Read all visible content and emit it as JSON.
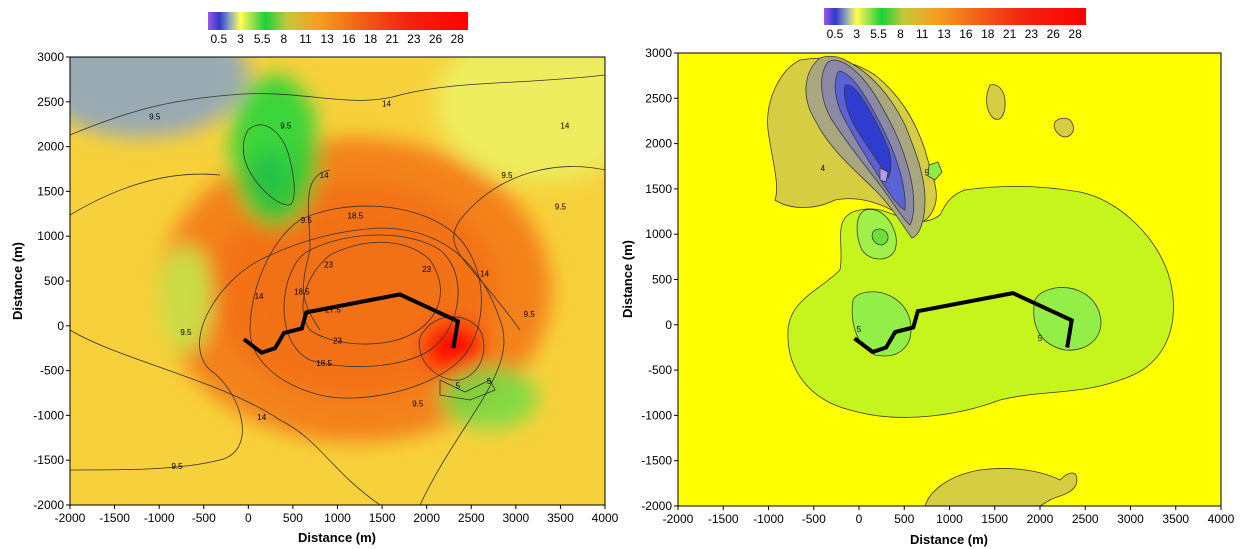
{
  "colors": {
    "stops": [
      {
        "v": 0.5,
        "c": "#9b57e8"
      },
      {
        "v": 1.8,
        "c": "#3038c8"
      },
      {
        "v": 3.0,
        "c": "#8fa6c0"
      },
      {
        "v": 4.2,
        "c": "#ffff50"
      },
      {
        "v": 5.5,
        "c": "#9de04e"
      },
      {
        "v": 7.0,
        "c": "#1ad336"
      },
      {
        "v": 9.5,
        "c": "#c5c73a"
      },
      {
        "v": 13.0,
        "c": "#f5a020"
      },
      {
        "v": 18.0,
        "c": "#f25f17"
      },
      {
        "v": 23.0,
        "c": "#f22410"
      },
      {
        "v": 30.0,
        "c": "#ff0000"
      }
    ],
    "right_background": "#ffff00",
    "path": "#000000"
  },
  "chart_data": [
    {
      "type": "heatmap",
      "title": "",
      "xlabel": "Distance (m)",
      "ylabel": "Distance (m)",
      "xlim": [
        -2000,
        4000
      ],
      "ylim": [
        -2000,
        3000
      ],
      "xticks": [
        -2000,
        -1500,
        -1000,
        -500,
        0,
        500,
        1000,
        1500,
        2000,
        2500,
        3000,
        3500,
        4000
      ],
      "yticks": [
        -2000,
        -1500,
        -1000,
        -500,
        0,
        500,
        1000,
        1500,
        2000,
        2500,
        3000
      ],
      "colorbar_labels": [
        "0.5",
        "3",
        "5.5",
        "8",
        "11",
        "13",
        "16",
        "18",
        "21",
        "23",
        "26",
        "28"
      ],
      "contour_labels": [
        {
          "text": "14",
          "x": 1550,
          "y": 2450
        },
        {
          "text": "14",
          "x": 3550,
          "y": 2200
        },
        {
          "text": "9.5",
          "x": -1050,
          "y": 2300
        },
        {
          "text": "9.5",
          "x": 420,
          "y": 2200
        },
        {
          "text": "9.5",
          "x": 2900,
          "y": 1650
        },
        {
          "text": "9.5",
          "x": 3500,
          "y": 1300
        },
        {
          "text": "9.5",
          "x": 650,
          "y": 1150
        },
        {
          "text": "14",
          "x": 850,
          "y": 1650
        },
        {
          "text": "18.5",
          "x": 1200,
          "y": 1200
        },
        {
          "text": "23",
          "x": 2000,
          "y": 600
        },
        {
          "text": "23",
          "x": 900,
          "y": 650
        },
        {
          "text": "14",
          "x": 2650,
          "y": 550
        },
        {
          "text": "18.5",
          "x": 600,
          "y": 350
        },
        {
          "text": "14",
          "x": 120,
          "y": 300
        },
        {
          "text": "27.5",
          "x": 950,
          "y": 150
        },
        {
          "text": "23",
          "x": 1000,
          "y": -200
        },
        {
          "text": "18.5",
          "x": 850,
          "y": -450
        },
        {
          "text": "9.5",
          "x": -700,
          "y": -100
        },
        {
          "text": "9.5",
          "x": 3150,
          "y": 100
        },
        {
          "text": "9.5",
          "x": 1900,
          "y": -900
        },
        {
          "text": "14",
          "x": 150,
          "y": -1050
        },
        {
          "text": "9.5",
          "x": -800,
          "y": -1600
        },
        {
          "text": "5",
          "x": 2700,
          "y": -650
        },
        {
          "text": "5",
          "x": 2350,
          "y": -700
        }
      ],
      "blobs": [
        {
          "x": 1200,
          "y": 400,
          "rx": 1000,
          "ry": 750,
          "v": 29
        },
        {
          "x": 1200,
          "y": 400,
          "rx": 1600,
          "ry": 1200,
          "v": 22
        },
        {
          "x": 1200,
          "y": 400,
          "rx": 2200,
          "ry": 1700,
          "v": 16
        },
        {
          "x": 2300,
          "y": -250,
          "rx": 350,
          "ry": 320,
          "v": 30
        },
        {
          "x": 300,
          "y": 2050,
          "rx": 280,
          "ry": 550,
          "v": 4
        },
        {
          "x": 250,
          "y": 1700,
          "rx": 180,
          "ry": 280,
          "v": 2
        },
        {
          "x": 300,
          "y": 1950,
          "rx": 500,
          "ry": 850,
          "v": -7
        },
        {
          "x": -700,
          "y": 300,
          "rx": 300,
          "ry": 600,
          "v": -5
        },
        {
          "x": 2700,
          "y": -800,
          "rx": 550,
          "ry": 350,
          "v": -6
        },
        {
          "x": 3300,
          "y": 2500,
          "rx": 1200,
          "ry": 900,
          "v": 4
        },
        {
          "x": -1200,
          "y": 2800,
          "rx": 1200,
          "ry": 700,
          "v": 3
        }
      ],
      "path": [
        [
          -50,
          -150
        ],
        [
          150,
          -300
        ],
        [
          300,
          -250
        ],
        [
          400,
          -80
        ],
        [
          600,
          -30
        ],
        [
          650,
          150
        ],
        [
          1700,
          350
        ],
        [
          2350,
          50
        ],
        [
          2300,
          -250
        ]
      ]
    },
    {
      "type": "heatmap",
      "title": "",
      "xlabel": "Distance (m)",
      "ylabel": "Distance (m)",
      "xlim": [
        -2000,
        4000
      ],
      "ylim": [
        -2000,
        3000
      ],
      "xticks": [
        -2000,
        -1500,
        -1000,
        -500,
        0,
        500,
        1000,
        1500,
        2000,
        2500,
        3000,
        3500,
        4000
      ],
      "yticks": [
        -2000,
        -1500,
        -1000,
        -500,
        0,
        500,
        1000,
        1500,
        2000,
        2500,
        3000
      ],
      "colorbar_labels": [
        "0.5",
        "3",
        "5.5",
        "8",
        "11",
        "13",
        "16",
        "18",
        "21",
        "23",
        "26",
        "28"
      ],
      "contour_labels": [
        {
          "text": "4",
          "x": -400,
          "y": 1700
        },
        {
          "text": "5",
          "x": 750,
          "y": 1650
        },
        {
          "text": "5",
          "x": 0,
          "y": -80
        },
        {
          "text": "5",
          "x": 2000,
          "y": -180
        }
      ],
      "path": [
        [
          -50,
          -150
        ],
        [
          150,
          -300
        ],
        [
          300,
          -250
        ],
        [
          400,
          -80
        ],
        [
          600,
          -30
        ],
        [
          650,
          150
        ],
        [
          1700,
          350
        ],
        [
          2350,
          50
        ],
        [
          2300,
          -250
        ]
      ]
    }
  ]
}
